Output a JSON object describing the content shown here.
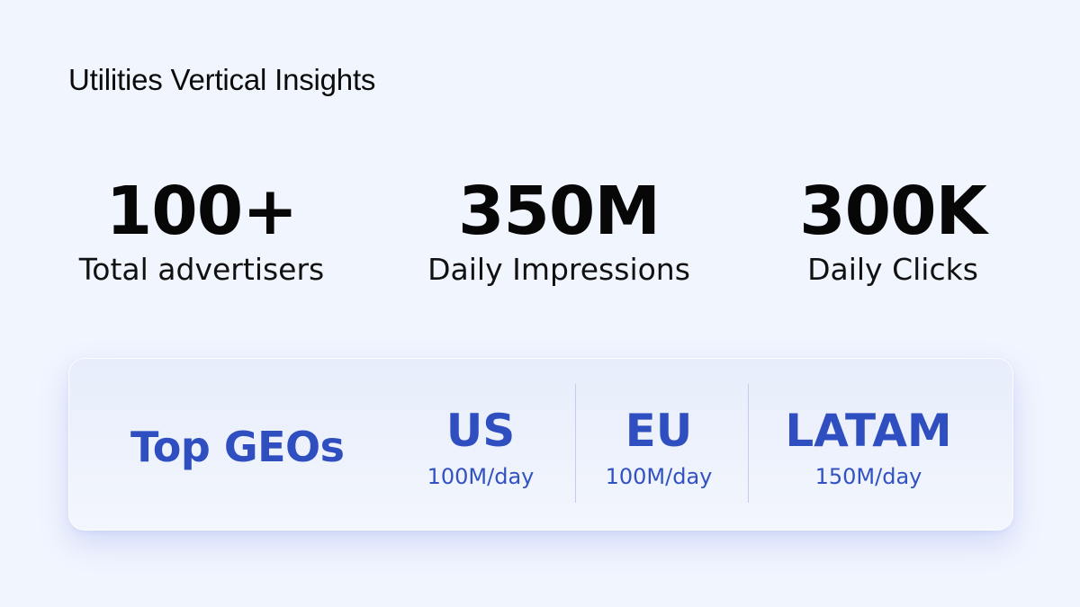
{
  "page": {
    "title": "Utilities Vertical Insights"
  },
  "stats": [
    {
      "value": "100+",
      "label": "Total advertisers"
    },
    {
      "value": "350M",
      "label": "Daily Impressions"
    },
    {
      "value": "300K",
      "label": "Daily Clicks"
    }
  ],
  "geos": {
    "heading": "Top GEOs",
    "items": [
      {
        "name": "US",
        "rate": "100M/day"
      },
      {
        "name": "EU",
        "rate": "100M/day"
      },
      {
        "name": "LATAM",
        "rate": "150M/day"
      }
    ]
  },
  "colors": {
    "background": "#f1f5fe",
    "accent": "#2f4fc0",
    "text": "#070707"
  }
}
